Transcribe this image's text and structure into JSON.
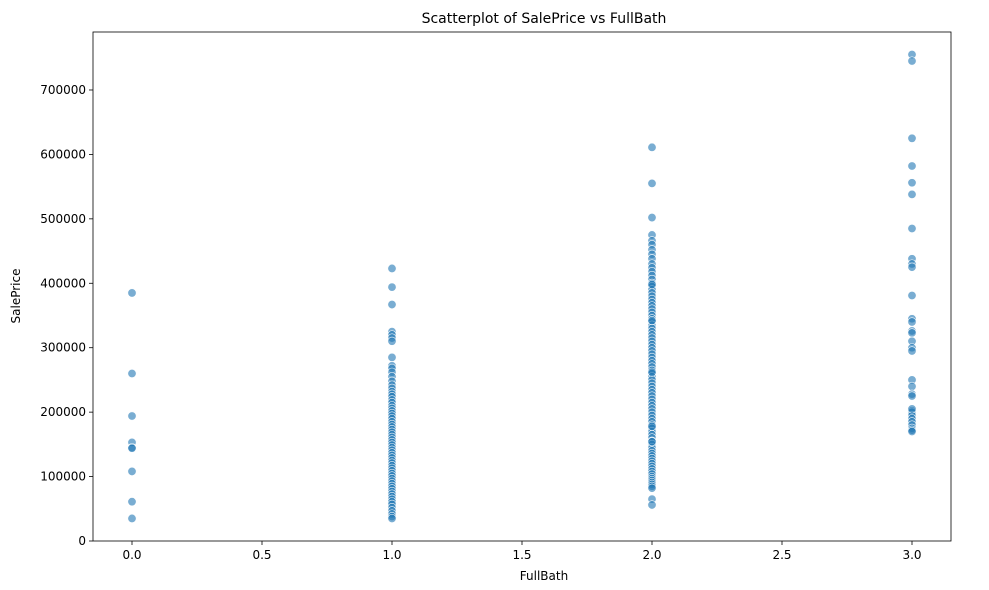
{
  "chart_data": {
    "type": "scatter",
    "title": "Scatterplot of SalePrice vs FullBath",
    "xlabel": "FullBath",
    "ylabel": "SalePrice",
    "xlim": [
      -0.15,
      3.15
    ],
    "ylim": [
      0,
      790000
    ],
    "grid": false,
    "point_color": "#1f77b4",
    "x_ticks": [
      0.0,
      0.5,
      1.0,
      1.5,
      2.0,
      2.5,
      3.0
    ],
    "x_tick_labels": [
      "0.0",
      "0.5",
      "1.0",
      "1.5",
      "2.0",
      "2.5",
      "3.0"
    ],
    "y_ticks": [
      0,
      100000,
      200000,
      300000,
      400000,
      500000,
      600000,
      700000
    ],
    "y_tick_labels": [
      "0",
      "100000",
      "200000",
      "300000",
      "400000",
      "500000",
      "600000",
      "700000"
    ],
    "series": [
      {
        "x": [
          0,
          0,
          0,
          0,
          0,
          0,
          0,
          0,
          0
        ],
        "y": [
          385000,
          260000,
          194000,
          153000,
          145000,
          144000,
          108000,
          61000,
          35000
        ]
      },
      {
        "x": [
          1,
          1,
          1,
          1,
          1,
          1,
          1,
          1,
          1,
          1,
          1,
          1,
          1,
          1,
          1,
          1,
          1,
          1,
          1,
          1,
          1,
          1,
          1,
          1,
          1,
          1,
          1,
          1,
          1,
          1,
          1,
          1,
          1,
          1,
          1,
          1,
          1,
          1,
          1,
          1,
          1,
          1,
          1,
          1,
          1,
          1,
          1,
          1,
          1,
          1,
          1,
          1,
          1,
          1,
          1,
          1,
          1,
          1,
          1,
          1,
          1,
          1,
          1,
          1
        ],
        "y": [
          423000,
          394000,
          367000,
          325000,
          320000,
          315000,
          310000,
          285000,
          272000,
          268000,
          262000,
          255000,
          248000,
          242000,
          237000,
          232000,
          228000,
          224000,
          219000,
          215000,
          210000,
          206000,
          202000,
          198000,
          194000,
          190000,
          185000,
          181000,
          177000,
          173000,
          169000,
          165000,
          161000,
          157000,
          153000,
          149000,
          145000,
          141000,
          137000,
          133000,
          129000,
          125000,
          121000,
          117000,
          113000,
          109000,
          105000,
          101000,
          97000,
          93000,
          89000,
          85000,
          81000,
          77000,
          73000,
          69000,
          65000,
          61000,
          57000,
          52000,
          47000,
          42000,
          38000,
          35000
        ]
      },
      {
        "x": [
          2,
          2,
          2,
          2,
          2,
          2,
          2,
          2,
          2,
          2,
          2,
          2,
          2,
          2,
          2,
          2,
          2,
          2,
          2,
          2,
          2,
          2,
          2,
          2,
          2,
          2,
          2,
          2,
          2,
          2,
          2,
          2,
          2,
          2,
          2,
          2,
          2,
          2,
          2,
          2,
          2,
          2,
          2,
          2,
          2,
          2,
          2,
          2,
          2,
          2,
          2,
          2,
          2,
          2,
          2,
          2,
          2,
          2,
          2,
          2,
          2,
          2,
          2,
          2,
          2,
          2,
          2,
          2,
          2,
          2,
          2,
          2,
          2,
          2,
          2,
          2,
          2,
          2,
          2,
          2,
          2,
          2,
          2,
          2,
          2,
          2,
          2,
          2,
          2,
          2
        ],
        "y": [
          611000,
          555000,
          502000,
          475000,
          466000,
          460000,
          452000,
          445000,
          438000,
          430000,
          424000,
          418000,
          412000,
          406000,
          400000,
          395000,
          390000,
          385000,
          380000,
          375000,
          370000,
          365000,
          360000,
          355000,
          350000,
          345000,
          340000,
          335000,
          330000,
          325000,
          320000,
          315000,
          310000,
          305000,
          300000,
          295000,
          290000,
          285000,
          280000,
          275000,
          270000,
          265000,
          260000,
          255000,
          250000,
          245000,
          240000,
          235000,
          230000,
          225000,
          220000,
          215000,
          210000,
          205000,
          200000,
          195000,
          190000,
          185000,
          180000,
          175000,
          170000,
          165000,
          160000,
          155000,
          150000,
          145000,
          140000,
          136000,
          132000,
          128000,
          124000,
          120000,
          116000,
          112000,
          108000,
          104000,
          100000,
          97000,
          94000,
          91000,
          88000,
          85000,
          82000,
          65000,
          56000,
          178000,
          262000,
          342000,
          398000,
          154000
        ]
      },
      {
        "x": [
          3,
          3,
          3,
          3,
          3,
          3,
          3,
          3,
          3,
          3,
          3,
          3,
          3,
          3,
          3,
          3,
          3,
          3,
          3,
          3,
          3,
          3,
          3,
          3,
          3,
          3,
          3,
          3,
          3,
          3,
          3,
          3
        ],
        "y": [
          755000,
          745000,
          625000,
          582000,
          556000,
          538000,
          485000,
          438000,
          430000,
          425000,
          381000,
          345000,
          340000,
          326000,
          323000,
          310000,
          300000,
          295000,
          250000,
          240000,
          228000,
          225000,
          202000,
          200000,
          195000,
          190000,
          185000,
          180000,
          175000,
          172000,
          170000,
          205000
        ]
      }
    ]
  }
}
